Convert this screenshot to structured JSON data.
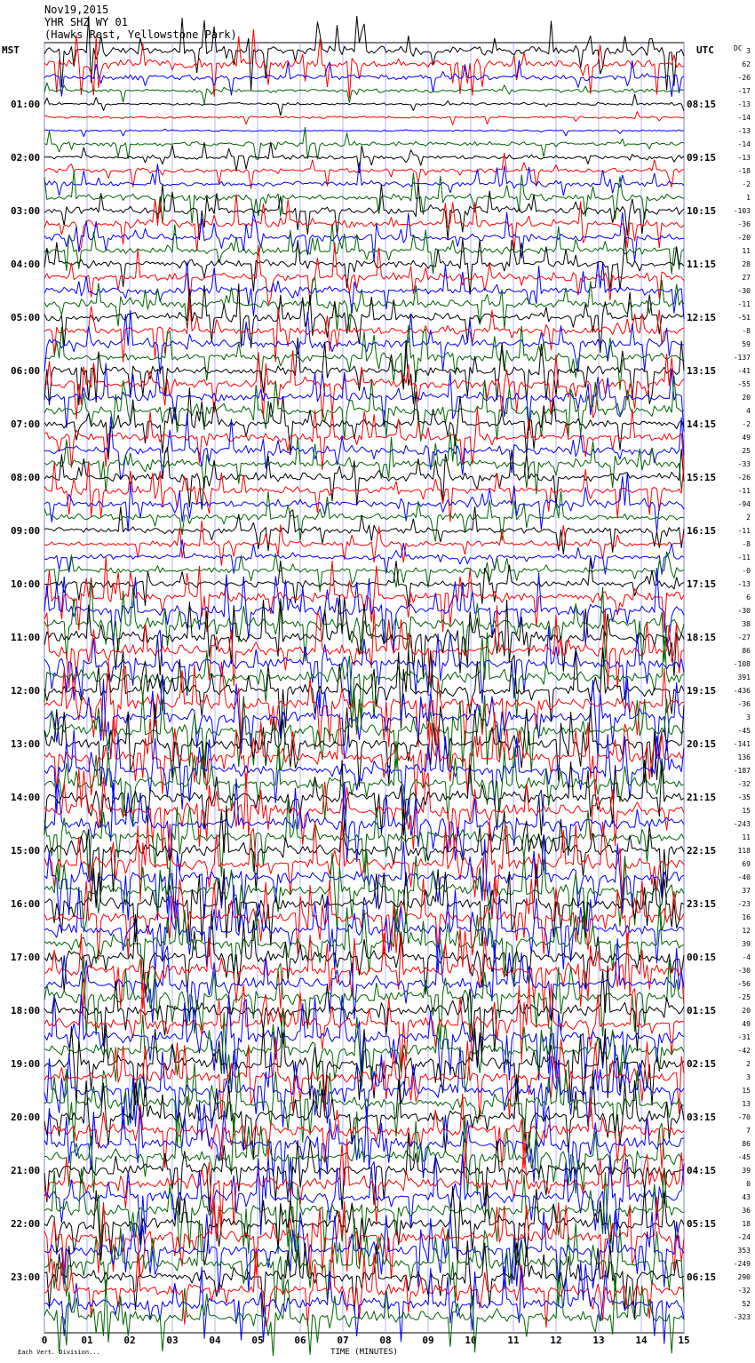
{
  "header": {
    "date": "Nov19,2015",
    "station": "YHR SHZ WY 01",
    "location": "(Hawks Rest, Yellowstone Park)"
  },
  "left_tz": "MST",
  "right_tz": "UTC",
  "dc_label": "DC",
  "chart_data": {
    "type": "line",
    "title": "",
    "xlabel": "TIME (MINUTES)",
    "footer_text": "Each Vert. Division...",
    "x_ticks": [
      "0",
      "01",
      "02",
      "03",
      "04",
      "05",
      "06",
      "07",
      "08",
      "09",
      "10",
      "11",
      "12",
      "13",
      "14",
      "15"
    ],
    "xlim": [
      0,
      15
    ],
    "trace_minutes_per_line": 15,
    "traces_per_hour": 4,
    "trace_colors": [
      "#000000",
      "#ff0000",
      "#0000ff",
      "#006400"
    ],
    "hour_labels_left": [
      "01:00",
      "02:00",
      "03:00",
      "04:00",
      "05:00",
      "06:00",
      "07:00",
      "08:00",
      "09:00",
      "10:00",
      "11:00",
      "12:00",
      "13:00",
      "14:00",
      "15:00",
      "16:00",
      "17:00",
      "18:00",
      "19:00",
      "20:00",
      "21:00",
      "22:00",
      "23:00"
    ],
    "hour_labels_right": [
      "08:15",
      "09:15",
      "10:15",
      "11:15",
      "12:15",
      "13:15",
      "14:15",
      "15:15",
      "16:15",
      "17:15",
      "18:15",
      "19:15",
      "20:15",
      "21:15",
      "22:15",
      "23:15",
      "00:15",
      "01:15",
      "02:15",
      "03:15",
      "04:15",
      "05:15",
      "06:15"
    ],
    "dc_offsets": [
      "3",
      "62",
      "-26",
      "-17",
      "-13",
      "-14",
      "-13",
      "-14",
      "-13",
      "-18",
      "-2",
      "1",
      "-103",
      "-36",
      "-20",
      "11",
      "28",
      "27",
      "-30",
      "-11",
      "-51",
      "-8",
      "59",
      "-137",
      "-41",
      "-55",
      "20",
      "4",
      "-2",
      "49",
      "25",
      "-33",
      "-26",
      "-11",
      "-94",
      "2",
      "-11",
      "-8",
      "-11",
      "-0",
      "-13",
      "6",
      "-30",
      "38",
      "-27",
      "86",
      "-108",
      "391",
      "-436",
      "-36",
      "3",
      "-45",
      "-141",
      "136",
      "-187",
      "-32",
      "-35",
      "15",
      "-243",
      "11",
      "118",
      "69",
      "-40",
      "37",
      "-23",
      "16",
      "12",
      "39",
      "-4",
      "-30",
      "-56",
      "-25",
      "20",
      "49",
      "-31",
      "-42",
      "2",
      "3",
      "15",
      "13",
      "-70",
      "7",
      "86",
      "-45",
      "39",
      "0",
      "43",
      "36",
      "18",
      "-24",
      "353",
      "-249",
      "290",
      "-32",
      "52",
      "-323"
    ],
    "trace_activity": [
      0.9,
      0.8,
      0.5,
      0.35,
      0.25,
      0.2,
      0.15,
      0.4,
      0.4,
      0.45,
      0.5,
      0.6,
      0.7,
      0.7,
      0.65,
      0.6,
      0.7,
      0.75,
      0.7,
      0.7,
      0.8,
      0.8,
      0.75,
      0.75,
      0.8,
      0.85,
      0.8,
      0.8,
      0.8,
      0.75,
      0.8,
      0.75,
      0.8,
      0.7,
      0.7,
      0.65,
      0.55,
      0.5,
      0.45,
      0.5,
      0.6,
      0.9,
      1,
      1,
      1,
      1,
      1,
      1,
      1,
      1,
      1,
      1,
      1,
      1,
      1,
      1,
      1,
      1,
      1,
      1,
      1,
      1,
      1,
      1,
      1,
      1,
      1,
      1,
      1,
      1,
      1,
      1,
      1,
      1,
      1,
      1,
      1,
      1,
      1,
      1,
      1,
      1,
      1,
      1,
      1,
      1,
      1,
      1,
      1,
      1,
      1,
      1,
      1,
      1,
      1,
      1
    ]
  }
}
